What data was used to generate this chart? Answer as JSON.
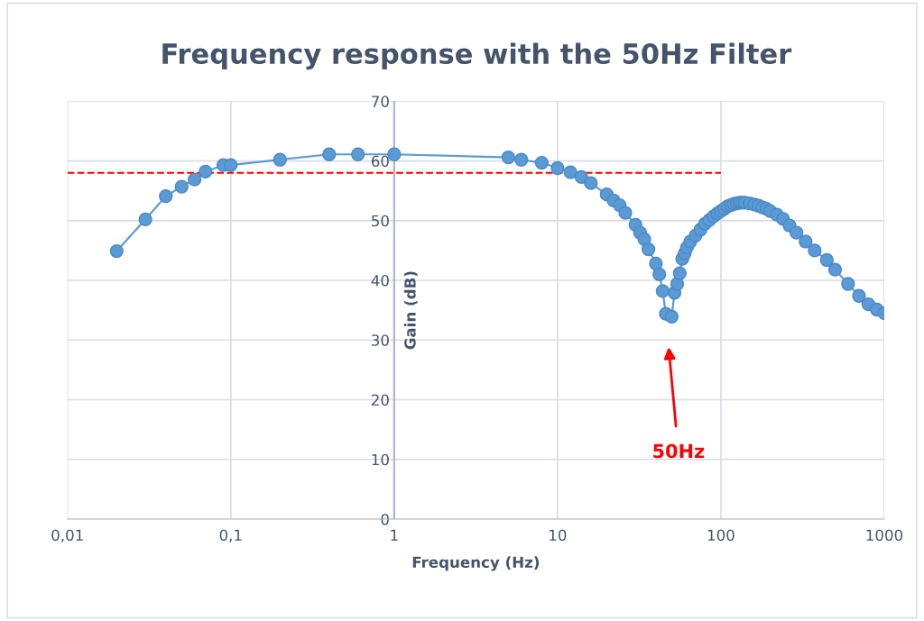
{
  "chart_data": {
    "type": "line",
    "title": "Frequency response with the 50Hz Filter",
    "xlabel": "Frequency (Hz)",
    "ylabel": "Gain (dB)",
    "log": "x",
    "grid": true,
    "marker": "circle",
    "line_style": "solid",
    "xlim": [
      0.01,
      1000
    ],
    "xticks": [
      {
        "value": 0.01,
        "label": "0,01"
      },
      {
        "value": 0.1,
        "label": "0,1"
      },
      1,
      10,
      100,
      1000
    ],
    "ylim": [
      0,
      70
    ],
    "yticks": [
      0,
      10,
      20,
      30,
      40,
      50,
      60,
      70
    ],
    "ref_lines": [
      {
        "axis": "x",
        "value": 1,
        "color": "#aab4c8"
      }
    ],
    "annotations": [
      "50Hz"
    ],
    "series": [
      {
        "color": "#5b9bd5",
        "x": [
          0.02,
          0.03,
          0.04,
          0.05,
          0.06,
          0.07,
          0.09,
          0.1,
          0.2,
          0.4,
          0.6,
          1,
          5,
          6,
          8,
          10,
          12,
          14,
          16,
          20,
          22,
          24,
          26,
          30,
          32,
          34,
          36,
          40,
          42,
          44,
          46,
          50,
          52,
          54,
          56,
          58,
          60,
          62,
          65,
          70,
          75,
          80,
          85,
          90,
          95,
          100,
          105,
          110,
          115,
          120,
          125,
          130,
          135,
          140,
          150,
          160,
          170,
          180,
          190,
          200,
          220,
          240,
          263,
          290,
          330,
          375,
          445,
          500,
          600,
          700,
          800,
          900,
          1000
        ],
        "values": [
          44.9,
          50.2,
          54.1,
          55.7,
          56.9,
          58.2,
          59.3,
          59.3,
          60.2,
          61.1,
          61.1,
          61.1,
          60.6,
          60.2,
          59.7,
          58.8,
          58.1,
          57.3,
          56.3,
          54.4,
          53.4,
          52.6,
          51.3,
          49.3,
          48.0,
          46.9,
          45.2,
          42.8,
          41.0,
          38.2,
          34.4,
          33.9,
          37.9,
          39.4,
          41.2,
          43.6,
          44.5,
          45.5,
          46.5,
          47.5,
          48.5,
          49.5,
          50.1,
          50.7,
          51.2,
          51.6,
          52.0,
          52.4,
          52.6,
          52.8,
          52.9,
          53.0,
          53.0,
          53.0,
          52.9,
          52.7,
          52.5,
          52.2,
          52.0,
          51.6,
          51.0,
          50.3,
          49.2,
          48.0,
          46.5,
          45.0,
          43.4,
          41.8,
          39.4,
          37.4,
          36.0,
          35.1,
          34.5
        ]
      },
      {
        "type": "line",
        "color": "#ff0000",
        "line_style": "dashed",
        "marker": "none",
        "x": [
          0.01,
          100
        ],
        "values": [
          58,
          58
        ]
      }
    ]
  }
}
